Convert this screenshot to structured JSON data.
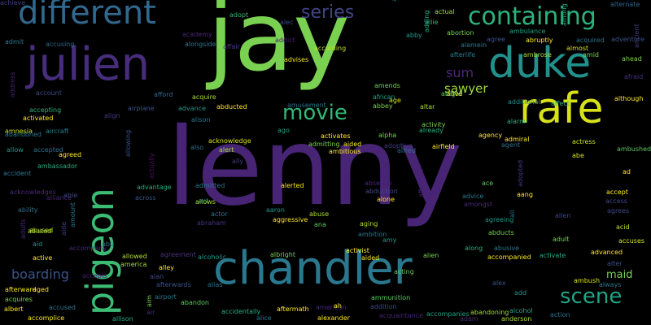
{
  "words": [
    {
      "text": "lenny",
      "size": 132,
      "color": "#482475"
    },
    {
      "text": "jay",
      "size": 118,
      "color": "#7ad151"
    },
    {
      "text": "chandler",
      "size": 56,
      "color": "#2a788e"
    },
    {
      "text": "julien",
      "size": 56,
      "color": "#472d7b"
    },
    {
      "text": "pigeon",
      "size": 46,
      "color": "#3cbb75"
    },
    {
      "text": "duke",
      "size": 52,
      "color": "#21918c"
    },
    {
      "text": "rafe",
      "size": 52,
      "color": "#d8e219"
    },
    {
      "text": "different",
      "size": 40,
      "color": "#31688e"
    },
    {
      "text": "containing",
      "size": 30,
      "color": "#2db27d"
    },
    {
      "text": "movie",
      "size": 26,
      "color": "#35b779"
    },
    {
      "text": "scene",
      "size": 26,
      "color": "#20a386"
    },
    {
      "text": "series",
      "size": 22,
      "color": "#414487"
    },
    {
      "text": "sum",
      "size": 16,
      "color": "#482878"
    },
    {
      "text": "sawyer",
      "size": 15,
      "color": "#a0da39"
    },
    {
      "text": "boarding",
      "size": 16,
      "color": "#3b528b"
    },
    {
      "text": "maid",
      "size": 13,
      "color": "#7ad151"
    },
    {
      "text": "adopt",
      "size": 8,
      "color": "#35b779"
    },
    {
      "text": "alec",
      "size": 8,
      "color": "#3e4a89"
    },
    {
      "text": "amulet",
      "size": 8,
      "color": "#2a788e"
    },
    {
      "text": "alternate",
      "size": 8,
      "color": "#31688e"
    },
    {
      "text": "actual",
      "size": 8,
      "color": "#a5db36"
    },
    {
      "text": "allie",
      "size": 8,
      "color": "#35b779"
    },
    {
      "text": "among",
      "size": 8,
      "color": "#22a884"
    },
    {
      "text": "admit",
      "size": 8,
      "color": "#2a788e"
    },
    {
      "text": "accusing",
      "size": 8,
      "color": "#31688e"
    },
    {
      "text": "academy",
      "size": 8,
      "color": "#482475"
    },
    {
      "text": "alongside",
      "size": 8,
      "color": "#2a788e"
    },
    {
      "text": "affair",
      "size": 8,
      "color": "#443983"
    },
    {
      "text": "addict",
      "size": 8,
      "color": "#481f70"
    },
    {
      "text": "abby",
      "size": 8,
      "color": "#1f988b"
    },
    {
      "text": "abortion",
      "size": 8,
      "color": "#7ad151"
    },
    {
      "text": "ambulance",
      "size": 8,
      "color": "#20a386"
    },
    {
      "text": "alamein",
      "size": 8,
      "color": "#2a788e"
    },
    {
      "text": "agree",
      "size": 8,
      "color": "#3b528b"
    },
    {
      "text": "abruptly",
      "size": 8,
      "color": "#fde725"
    },
    {
      "text": "acquired",
      "size": 8,
      "color": "#2c728e"
    },
    {
      "text": "adventure",
      "size": 8,
      "color": "#3b528b"
    },
    {
      "text": "almost",
      "size": 8,
      "color": "#d8e219"
    },
    {
      "text": "ancient",
      "size": 8,
      "color": "#433d84"
    },
    {
      "text": "ahead",
      "size": 8,
      "color": "#7ad151"
    },
    {
      "text": "according",
      "size": 8,
      "color": "#bddf26"
    },
    {
      "text": "advises",
      "size": 8,
      "color": "#fde725"
    },
    {
      "text": "afterlife",
      "size": 8,
      "color": "#277f8e"
    },
    {
      "text": "ambrose",
      "size": 8,
      "color": "#a8db34"
    },
    {
      "text": "amid",
      "size": 8,
      "color": "#7ad151"
    },
    {
      "text": "afraid",
      "size": 8,
      "color": "#463480"
    },
    {
      "text": "address",
      "size": 8,
      "color": "#481f70"
    },
    {
      "text": "account",
      "size": 8,
      "color": "#3e4989"
    },
    {
      "text": "afford",
      "size": 8,
      "color": "#31688e"
    },
    {
      "text": "acquire",
      "size": 8,
      "color": "#a5db36"
    },
    {
      "text": "amusement",
      "size": 8,
      "color": "#2c728e"
    },
    {
      "text": "amends",
      "size": 8,
      "color": "#7ad151"
    },
    {
      "text": "african",
      "size": 8,
      "color": "#20a386"
    },
    {
      "text": "age",
      "size": 8,
      "color": "#d2e21b"
    },
    {
      "text": "additional",
      "size": 8,
      "color": "#21918c"
    },
    {
      "text": "affect",
      "size": 8,
      "color": "#2db27d"
    },
    {
      "text": "abigail",
      "size": 8,
      "color": "#5ec962"
    },
    {
      "text": "although",
      "size": 8,
      "color": "#fde725"
    },
    {
      "text": "alive",
      "size": 8,
      "color": "#fde725"
    },
    {
      "text": "abused",
      "size": 8,
      "color": "#addc30"
    },
    {
      "text": "amnesia",
      "size": 8,
      "color": "#cae11f"
    },
    {
      "text": "accepting",
      "size": 8,
      "color": "#2db27d"
    },
    {
      "text": "activated",
      "size": 8,
      "color": "#fde725"
    },
    {
      "text": "align",
      "size": 8,
      "color": "#443983"
    },
    {
      "text": "airplane",
      "size": 8,
      "color": "#3b528b"
    },
    {
      "text": "advance",
      "size": 8,
      "color": "#1f988b"
    },
    {
      "text": "alison",
      "size": 8,
      "color": "#2c728e"
    },
    {
      "text": "abducted",
      "size": 8,
      "color": "#fde725"
    },
    {
      "text": "ago",
      "size": 8,
      "color": "#20a386"
    },
    {
      "text": "abbey",
      "size": 8,
      "color": "#7ad151"
    },
    {
      "text": "alpha",
      "size": 8,
      "color": "#7ad151"
    },
    {
      "text": "altar",
      "size": 8,
      "color": "#a8db34"
    },
    {
      "text": "activity",
      "size": 8,
      "color": "#7ad151"
    },
    {
      "text": "agency",
      "size": 8,
      "color": "#fde725"
    },
    {
      "text": "admiral",
      "size": 8,
      "color": "#fde725"
    },
    {
      "text": "alarm",
      "size": 8,
      "color": "#29af7f"
    },
    {
      "text": "actress",
      "size": 8,
      "color": "#cae11f"
    },
    {
      "text": "ambushed",
      "size": 8,
      "color": "#5ec962"
    },
    {
      "text": "abandoned",
      "size": 8,
      "color": "#2a788e"
    },
    {
      "text": "aircraft",
      "size": 8,
      "color": "#26828e"
    },
    {
      "text": "allowing",
      "size": 8,
      "color": "#3b528b"
    },
    {
      "text": "acknowledge",
      "size": 8,
      "color": "#d8e219"
    },
    {
      "text": "alert",
      "size": 8,
      "color": "#a5db36"
    },
    {
      "text": "activates",
      "size": 8,
      "color": "#fde725"
    },
    {
      "text": "admitting",
      "size": 8,
      "color": "#7ad151"
    },
    {
      "text": "aided",
      "size": 8,
      "color": "#fde725"
    },
    {
      "text": "ambitious",
      "size": 8,
      "color": "#fde725"
    },
    {
      "text": "alfred",
      "size": 8,
      "color": "#2c728e"
    },
    {
      "text": "already",
      "size": 8,
      "color": "#2db27d"
    },
    {
      "text": "airfield",
      "size": 8,
      "color": "#fde725"
    },
    {
      "text": "agent",
      "size": 8,
      "color": "#2c728e"
    },
    {
      "text": "allow",
      "size": 8,
      "color": "#1f988b"
    },
    {
      "text": "accepted",
      "size": 8,
      "color": "#2c728e"
    },
    {
      "text": "agreed",
      "size": 8,
      "color": "#fde725"
    },
    {
      "text": "also",
      "size": 8,
      "color": "#2c728e"
    },
    {
      "text": "abe",
      "size": 8,
      "color": "#d8e219"
    },
    {
      "text": "accident",
      "size": 8,
      "color": "#2a788e"
    },
    {
      "text": "ambassador",
      "size": 8,
      "color": "#29af7f"
    },
    {
      "text": "actually",
      "size": 8,
      "color": "#471063"
    },
    {
      "text": "aboard",
      "size": 8,
      "color": "#481f70"
    },
    {
      "text": "ally",
      "size": 8,
      "color": "#433d84"
    },
    {
      "text": "adopted",
      "size": 8,
      "color": "#443983"
    },
    {
      "text": "ad",
      "size": 8,
      "color": "#fde725"
    },
    {
      "text": "affection",
      "size": 8,
      "color": "#482173"
    },
    {
      "text": "acknowledges",
      "size": 8,
      "color": "#482878"
    },
    {
      "text": "able",
      "size": 8,
      "color": "#3e4a89"
    },
    {
      "text": "advantage",
      "size": 8,
      "color": "#29af7f"
    },
    {
      "text": "admitted",
      "size": 8,
      "color": "#2c728e"
    },
    {
      "text": "alerted",
      "size": 8,
      "color": "#fde725"
    },
    {
      "text": "absence",
      "size": 8,
      "color": "#482475"
    },
    {
      "text": "ace",
      "size": 8,
      "color": "#5ec962"
    },
    {
      "text": "accept",
      "size": 8,
      "color": "#fde725"
    },
    {
      "text": "alliance",
      "size": 8,
      "color": "#482878"
    },
    {
      "text": "across",
      "size": 8,
      "color": "#3b528b"
    },
    {
      "text": "allows",
      "size": 8,
      "color": "#a8db34"
    },
    {
      "text": "act",
      "size": 8,
      "color": "#26828e"
    },
    {
      "text": "abduction",
      "size": 8,
      "color": "#3e4a89"
    },
    {
      "text": "advice",
      "size": 8,
      "color": "#2a788e"
    },
    {
      "text": "amongst",
      "size": 8,
      "color": "#482878"
    },
    {
      "text": "aang",
      "size": 8,
      "color": "#fde725"
    },
    {
      "text": "access",
      "size": 8,
      "color": "#3e4989"
    },
    {
      "text": "ability",
      "size": 8,
      "color": "#2c728e"
    },
    {
      "text": "aide",
      "size": 8,
      "color": "#433d84"
    },
    {
      "text": "actor",
      "size": 8,
      "color": "#2a788e"
    },
    {
      "text": "aaron",
      "size": 8,
      "color": "#1f988b"
    },
    {
      "text": "abuse",
      "size": 8,
      "color": "#addc30"
    },
    {
      "text": "alone",
      "size": 8,
      "color": "#fde725"
    },
    {
      "text": "ali",
      "size": 8,
      "color": "#2c728e"
    },
    {
      "text": "allen",
      "size": 8,
      "color": "#3e4989"
    },
    {
      "text": "agrees",
      "size": 8,
      "color": "#3e4989"
    },
    {
      "text": "amount",
      "size": 8,
      "color": "#2a788e"
    },
    {
      "text": "abraham",
      "size": 8,
      "color": "#463480"
    },
    {
      "text": "aggressive",
      "size": 8,
      "color": "#fde725"
    },
    {
      "text": "ana",
      "size": 8,
      "color": "#5ec962"
    },
    {
      "text": "aging",
      "size": 8,
      "color": "#addc30"
    },
    {
      "text": "agreeing",
      "size": 8,
      "color": "#1f988b"
    },
    {
      "text": "acid",
      "size": 8,
      "color": "#bddf26"
    },
    {
      "text": "adults",
      "size": 8,
      "color": "#482878"
    },
    {
      "text": "abused",
      "size": 8,
      "color": "#addc30"
    },
    {
      "text": "ambition",
      "size": 8,
      "color": "#2a788e"
    },
    {
      "text": "abducts",
      "size": 8,
      "color": "#7ad151"
    },
    {
      "text": "aid",
      "size": 8,
      "color": "#1f988b"
    },
    {
      "text": "abu",
      "size": 8,
      "color": "#2c728e"
    },
    {
      "text": "accompany",
      "size": 8,
      "color": "#482878"
    },
    {
      "text": "amy",
      "size": 8,
      "color": "#1f988b"
    },
    {
      "text": "adult",
      "size": 8,
      "color": "#7ad151"
    },
    {
      "text": "accuses",
      "size": 8,
      "color": "#d2e21b"
    },
    {
      "text": "active",
      "size": 8,
      "color": "#fde725"
    },
    {
      "text": "allowed",
      "size": 8,
      "color": "#addc30"
    },
    {
      "text": "america",
      "size": 8,
      "color": "#a5db36"
    },
    {
      "text": "agreement",
      "size": 8,
      "color": "#463480"
    },
    {
      "text": "alcoholic",
      "size": 8,
      "color": "#1f988b"
    },
    {
      "text": "albright",
      "size": 8,
      "color": "#7ad151"
    },
    {
      "text": "activist",
      "size": 8,
      "color": "#fde725"
    },
    {
      "text": "aided",
      "size": 8,
      "color": "#fde725"
    },
    {
      "text": "alien",
      "size": 8,
      "color": "#7ad151"
    },
    {
      "text": "along",
      "size": 8,
      "color": "#29af7f"
    },
    {
      "text": "abusive",
      "size": 8,
      "color": "#2a788e"
    },
    {
      "text": "accompanied",
      "size": 8,
      "color": "#fde725"
    },
    {
      "text": "activate",
      "size": 8,
      "color": "#22a884"
    },
    {
      "text": "advanced",
      "size": 8,
      "color": "#fde725"
    },
    {
      "text": "alter",
      "size": 8,
      "color": "#3b528b"
    },
    {
      "text": "alley",
      "size": 8,
      "color": "#fde725"
    },
    {
      "text": "acting",
      "size": 8,
      "color": "#5ec962"
    },
    {
      "text": "aim",
      "size": 8,
      "color": "#7ad151"
    },
    {
      "text": "accepts",
      "size": 8,
      "color": "#481f70"
    },
    {
      "text": "alan",
      "size": 8,
      "color": "#3e4a89"
    },
    {
      "text": "afterwards",
      "size": 8,
      "color": "#3b528b"
    },
    {
      "text": "alias",
      "size": 8,
      "color": "#2c728e"
    },
    {
      "text": "alex",
      "size": 8,
      "color": "#3b528b"
    },
    {
      "text": "ambush",
      "size": 8,
      "color": "#d8e219"
    },
    {
      "text": "always",
      "size": 8,
      "color": "#2a788e"
    },
    {
      "text": "afterward",
      "size": 8,
      "color": "#fde725"
    },
    {
      "text": "aged",
      "size": 8,
      "color": "#fde725"
    },
    {
      "text": "acquires",
      "size": 8,
      "color": "#7ad151"
    },
    {
      "text": "airport",
      "size": 8,
      "color": "#2c728e"
    },
    {
      "text": "add",
      "size": 8,
      "color": "#1f988b"
    },
    {
      "text": "albert",
      "size": 8,
      "color": "#fde725"
    },
    {
      "text": "accused",
      "size": 8,
      "color": "#2a788e"
    },
    {
      "text": "abandon",
      "size": 8,
      "color": "#5ec962"
    },
    {
      "text": "air",
      "size": 8,
      "color": "#482878"
    },
    {
      "text": "accidentally",
      "size": 8,
      "color": "#29af7f"
    },
    {
      "text": "aftermath",
      "size": 8,
      "color": "#fde725"
    },
    {
      "text": "american",
      "size": 8,
      "color": "#482878"
    },
    {
      "text": "ah",
      "size": 8,
      "color": "#fde725"
    },
    {
      "text": "addition",
      "size": 8,
      "color": "#3e4a89"
    },
    {
      "text": "alcohol",
      "size": 8,
      "color": "#22a884"
    },
    {
      "text": "abandoning",
      "size": 8,
      "color": "#a5db36"
    },
    {
      "text": "action",
      "size": 8,
      "color": "#2c728e"
    },
    {
      "text": "accomplice",
      "size": 8,
      "color": "#fde725"
    },
    {
      "text": "allison",
      "size": 8,
      "color": "#22a884"
    },
    {
      "text": "alice",
      "size": 8,
      "color": "#2a788e"
    },
    {
      "text": "alexander",
      "size": 8,
      "color": "#fde725"
    },
    {
      "text": "acquaintance",
      "size": 8,
      "color": "#482475"
    },
    {
      "text": "accompanies",
      "size": 8,
      "color": "#20a386"
    },
    {
      "text": "adam",
      "size": 8,
      "color": "#482878"
    },
    {
      "text": "anderson",
      "size": 8,
      "color": "#a5db36"
    },
    {
      "text": "ammunition",
      "size": 8,
      "color": "#5ec962"
    },
    {
      "text": "adding",
      "size": 8,
      "color": "#22a884"
    },
    {
      "text": "adoptive",
      "size": 8,
      "color": "#433d84"
    },
    {
      "text": "achieve",
      "size": 8,
      "color": "#433d84"
    }
  ]
}
